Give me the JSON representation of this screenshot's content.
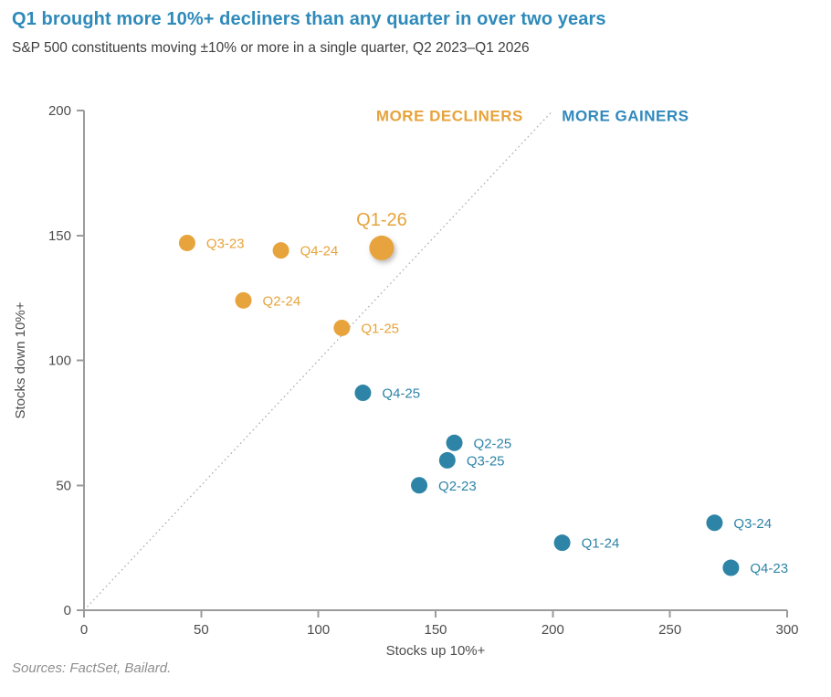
{
  "header": {
    "title": "Q1 brought more 10%+ decliners than any quarter in over two years",
    "subtitle": "S&P 500 constituents moving ±10% or more in a single quarter, Q2 2023–Q1 2026"
  },
  "source": "Sources: FactSet, Bailard.",
  "colors": {
    "title": "#2E8ABA",
    "subtitle": "#3F3F3F",
    "source": "#8F8F8F",
    "decliners": "#E7A33C",
    "gainers": "#2E84A7",
    "gainers_annotation": "#3189BC",
    "axis": "#9B9B9B",
    "tick_label": "#4D4D4D",
    "axis_title": "#4D4D4D",
    "diagonal": "#B3AEA7"
  },
  "chart_data": {
    "type": "scatter",
    "title": "Q1 brought more 10%+ decliners than any quarter in over two years",
    "xlabel": "Stocks up 10%+",
    "ylabel": "Stocks down 10%+",
    "xlim": [
      0,
      300
    ],
    "ylim": [
      0,
      200
    ],
    "xticks": [
      0,
      50,
      100,
      150,
      200,
      250,
      300
    ],
    "yticks": [
      0,
      50,
      100,
      150,
      200
    ],
    "grid": false,
    "diagonal_line": {
      "style": "dotted",
      "from": [
        0,
        0
      ],
      "to": [
        200,
        200
      ]
    },
    "annotations": [
      {
        "id": "more-decliners",
        "text": "MORE DECLINERS",
        "x": 156,
        "y": 198,
        "color_key": "decliners"
      },
      {
        "id": "more-gainers",
        "text": "MORE GAINERS",
        "x": 231,
        "y": 198,
        "color_key": "gainers_annotation"
      }
    ],
    "series": [
      {
        "name": "More decliners",
        "color_key": "decliners",
        "points": [
          {
            "label": "Q3-23",
            "x": 44,
            "y": 147
          },
          {
            "label": "Q2-24",
            "x": 68,
            "y": 124
          },
          {
            "label": "Q4-24",
            "x": 84,
            "y": 144
          },
          {
            "label": "Q1-25",
            "x": 110,
            "y": 113
          },
          {
            "label": "Q1-26",
            "x": 127,
            "y": 145,
            "emphasis": true,
            "label_position": "above"
          }
        ]
      },
      {
        "name": "More gainers",
        "color_key": "gainers",
        "points": [
          {
            "label": "Q2-23",
            "x": 143,
            "y": 50
          },
          {
            "label": "Q4-23",
            "x": 276,
            "y": 17
          },
          {
            "label": "Q1-24",
            "x": 204,
            "y": 27
          },
          {
            "label": "Q3-24",
            "x": 269,
            "y": 35
          },
          {
            "label": "Q2-25",
            "x": 158,
            "y": 67
          },
          {
            "label": "Q3-25",
            "x": 155,
            "y": 60
          },
          {
            "label": "Q4-25",
            "x": 119,
            "y": 87
          }
        ]
      }
    ]
  }
}
